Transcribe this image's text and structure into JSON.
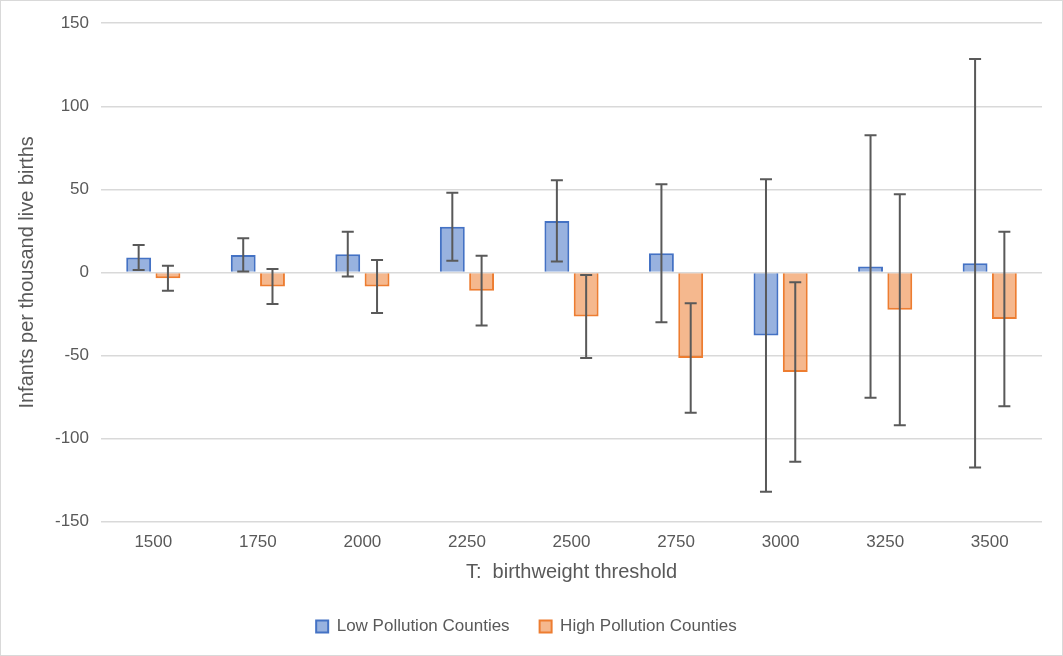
{
  "chart_data": {
    "type": "bar",
    "xlabel": "T:  birthweight threshold",
    "ylabel": "Infants per thousand live births",
    "categories": [
      "1500",
      "1750",
      "2000",
      "2250",
      "2500",
      "2750",
      "3000",
      "3250",
      "3500"
    ],
    "series": [
      {
        "name": "Low Pollution Counties",
        "color": "#4472c4",
        "values": [
          9,
          10.5,
          11,
          27.5,
          31,
          11.5,
          -38,
          3.5,
          5.5
        ],
        "errors": [
          7.5,
          10,
          13.5,
          20.5,
          24.5,
          41.5,
          94,
          79,
          123
        ]
      },
      {
        "name": "High Pollution Counties",
        "color": "#ed7d31",
        "values": [
          -3.5,
          -8.5,
          -8.5,
          -11,
          -26.5,
          -51.5,
          -60,
          -22.5,
          -28
        ],
        "errors": [
          7.5,
          10.5,
          16,
          21,
          25,
          33,
          54,
          69.5,
          52.5
        ]
      }
    ],
    "ylim": [
      -150,
      150
    ],
    "yticks": [
      -150,
      -100,
      -50,
      0,
      50,
      100,
      150
    ],
    "grid": "y",
    "legend": "bottom"
  }
}
